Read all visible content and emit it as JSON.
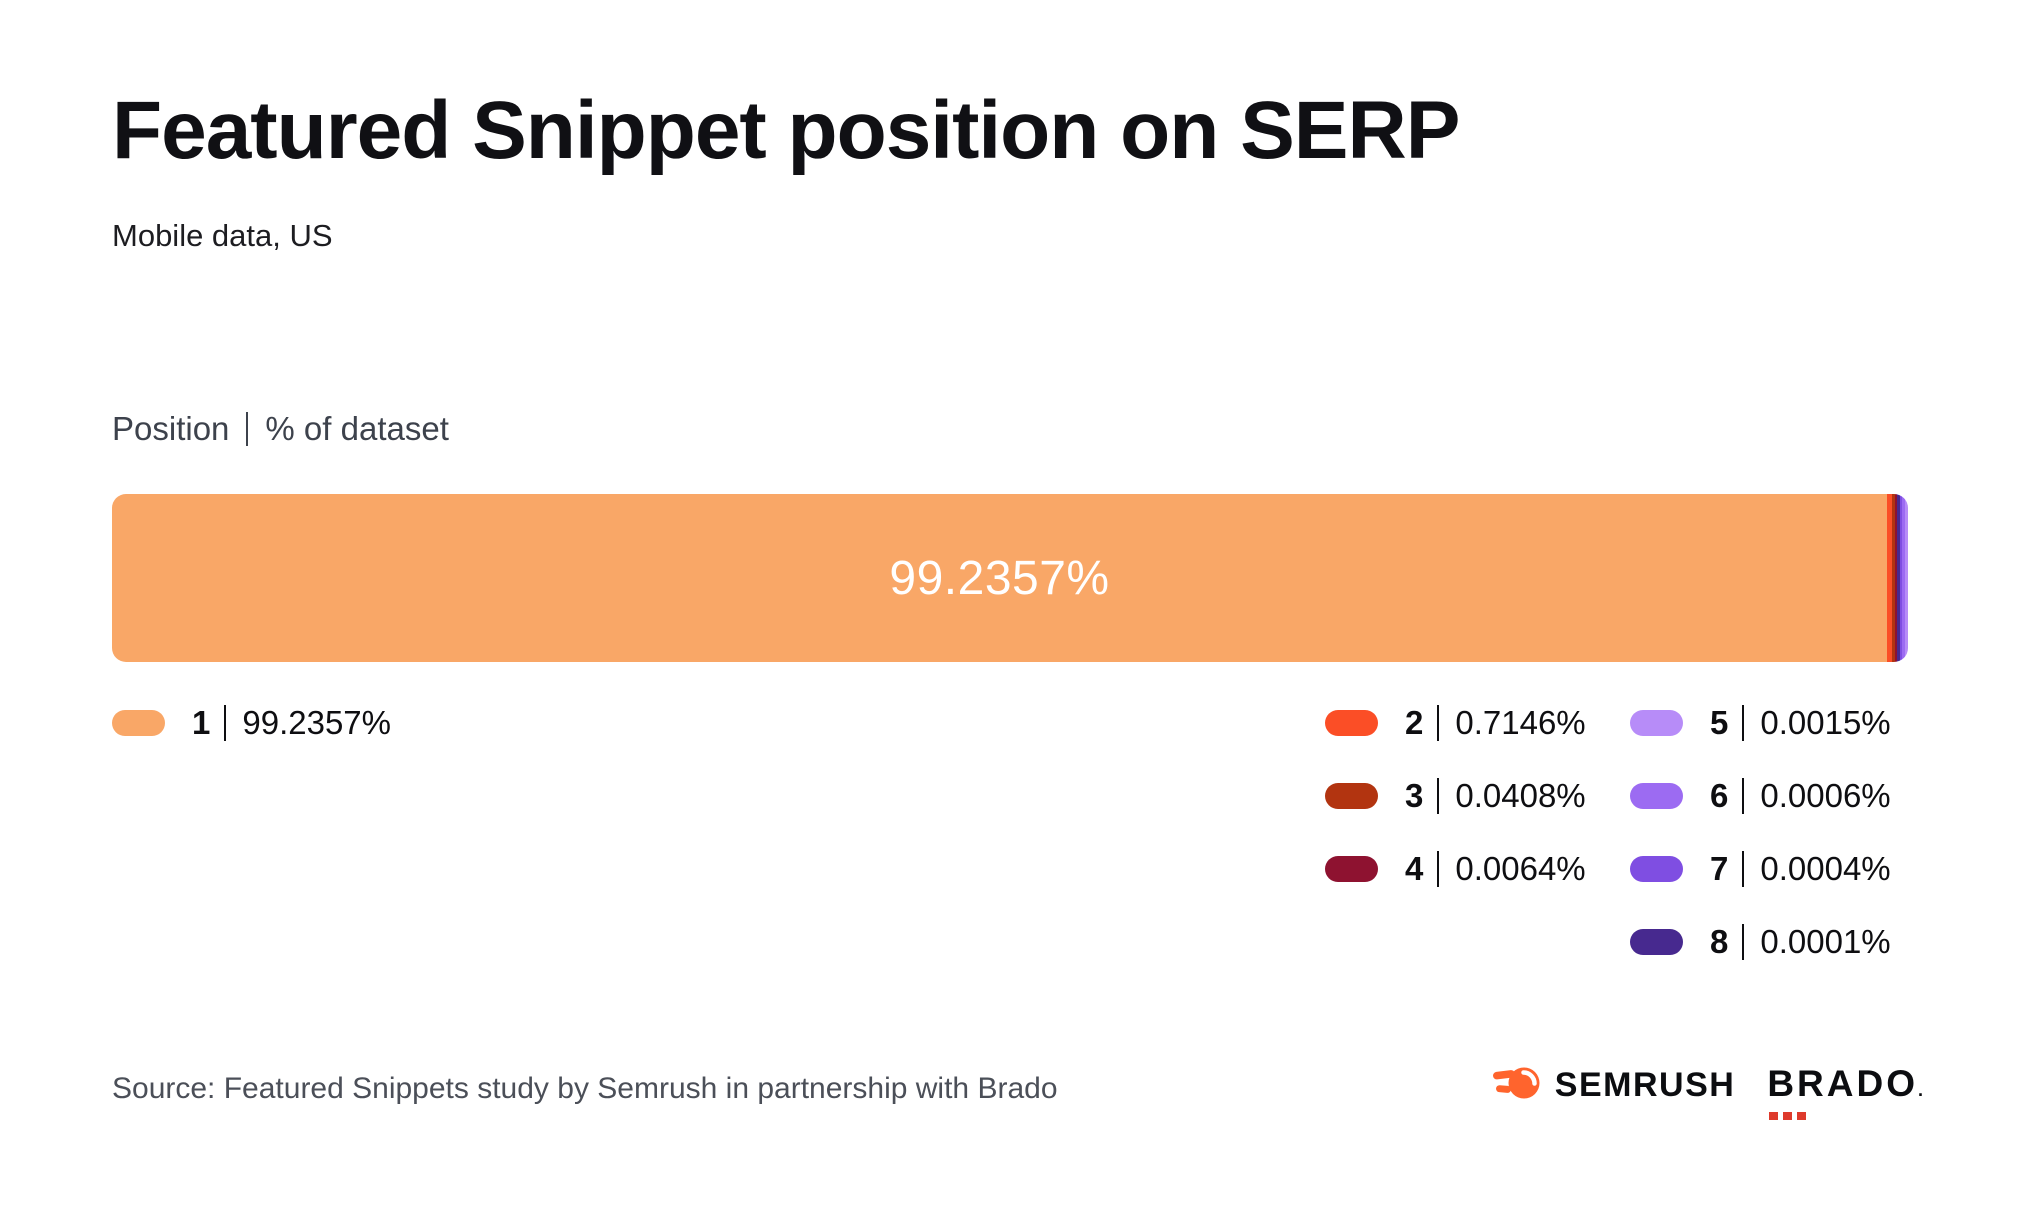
{
  "title": "Featured Snippet position on SERP",
  "subtitle": "Mobile data, US",
  "chart_header": {
    "position_label": "Position",
    "dataset_label": "% of dataset"
  },
  "chart_data": {
    "type": "bar",
    "stacked": true,
    "orientation": "horizontal",
    "title": "Featured Snippet position on SERP",
    "subtitle": "Mobile data, US",
    "xlabel": "Position",
    "ylabel": "% of dataset",
    "value_unit": "%",
    "total": 100,
    "bar_inner_label": "99.2357%",
    "segments": [
      {
        "position": "1",
        "value": 99.2357,
        "display": "99.2357%",
        "color": "#F9A767"
      },
      {
        "position": "2",
        "value": 0.7146,
        "display": "0.7146%",
        "color": "#FB4E26"
      },
      {
        "position": "3",
        "value": 0.0408,
        "display": "0.0408%",
        "color": "#B23410"
      },
      {
        "position": "4",
        "value": 0.0064,
        "display": "0.0064%",
        "color": "#8E1230"
      },
      {
        "position": "5",
        "value": 0.0015,
        "display": "0.0015%",
        "color": "#B78CF8"
      },
      {
        "position": "6",
        "value": 0.0006,
        "display": "0.0006%",
        "color": "#9C6BF2"
      },
      {
        "position": "7",
        "value": 0.0004,
        "display": "0.0004%",
        "color": "#7F4EE2"
      },
      {
        "position": "8",
        "value": 0.0001,
        "display": "0.0001%",
        "color": "#47298F"
      }
    ],
    "legend_position": "below",
    "grid": false
  },
  "footer": {
    "source": "Source: Featured Snippets study by Semrush in partnership with Brado",
    "semrush_label": "SEMRUSH",
    "brado_label": "BRADO",
    "brado_period": "."
  },
  "colors": {
    "background": "#FFFFFF",
    "title_text": "#101014",
    "header_text": "#3D424C",
    "legend_text": "#0E0E11",
    "source_text": "#4B4F58",
    "bar_label_text": "#FFFFFF",
    "semrush_orange": "#FF642D",
    "brado_red": "#DE3A2C"
  }
}
